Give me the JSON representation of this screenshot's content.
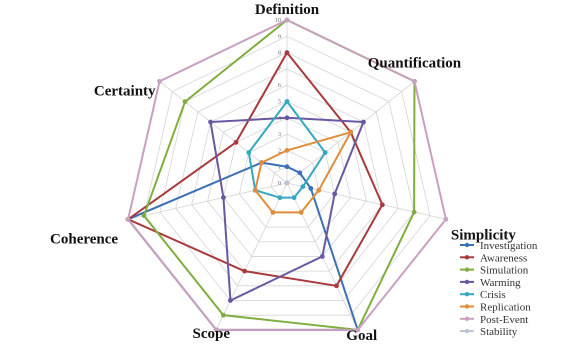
{
  "chart_data": {
    "type": "radar",
    "axes": [
      "Definition",
      "Quantification",
      "Simplicity",
      "Goal",
      "Scope",
      "Coherence",
      "Certainty"
    ],
    "ticks": [
      "0",
      "1",
      "2",
      "3",
      "4",
      "5",
      "6",
      "7",
      "8",
      "9",
      "10"
    ],
    "range": [
      0,
      10
    ],
    "grid": true,
    "legend_position": "bottom-right",
    "series": [
      {
        "name": "Investigation",
        "color": "#3b6fb6",
        "values": [
          1,
          1,
          1.5,
          10,
          10,
          10,
          2
        ]
      },
      {
        "name": "Awareness",
        "color": "#a8393c",
        "values": [
          8,
          5,
          6,
          7,
          6,
          10,
          4
        ]
      },
      {
        "name": "Simulation",
        "color": "#7fae3e",
        "values": [
          10,
          10,
          8,
          10,
          9,
          9,
          8
        ]
      },
      {
        "name": "Warming",
        "color": "#6957a0",
        "values": [
          4,
          6,
          3,
          5,
          8,
          4,
          6
        ]
      },
      {
        "name": "Crisis",
        "color": "#35a7c2",
        "values": [
          5,
          3,
          1,
          1,
          1,
          2,
          3
        ]
      },
      {
        "name": "Replication",
        "color": "#e08c3a",
        "values": [
          2,
          5,
          2,
          2,
          2,
          2,
          2
        ]
      },
      {
        "name": "Post-Event",
        "color": "#c9a0c0",
        "values": [
          10,
          10,
          10,
          10,
          10,
          10,
          10
        ]
      },
      {
        "name": "Stability",
        "color": "#bcc3d6",
        "values": [
          0,
          0,
          0,
          0,
          0,
          0,
          0
        ]
      }
    ]
  }
}
